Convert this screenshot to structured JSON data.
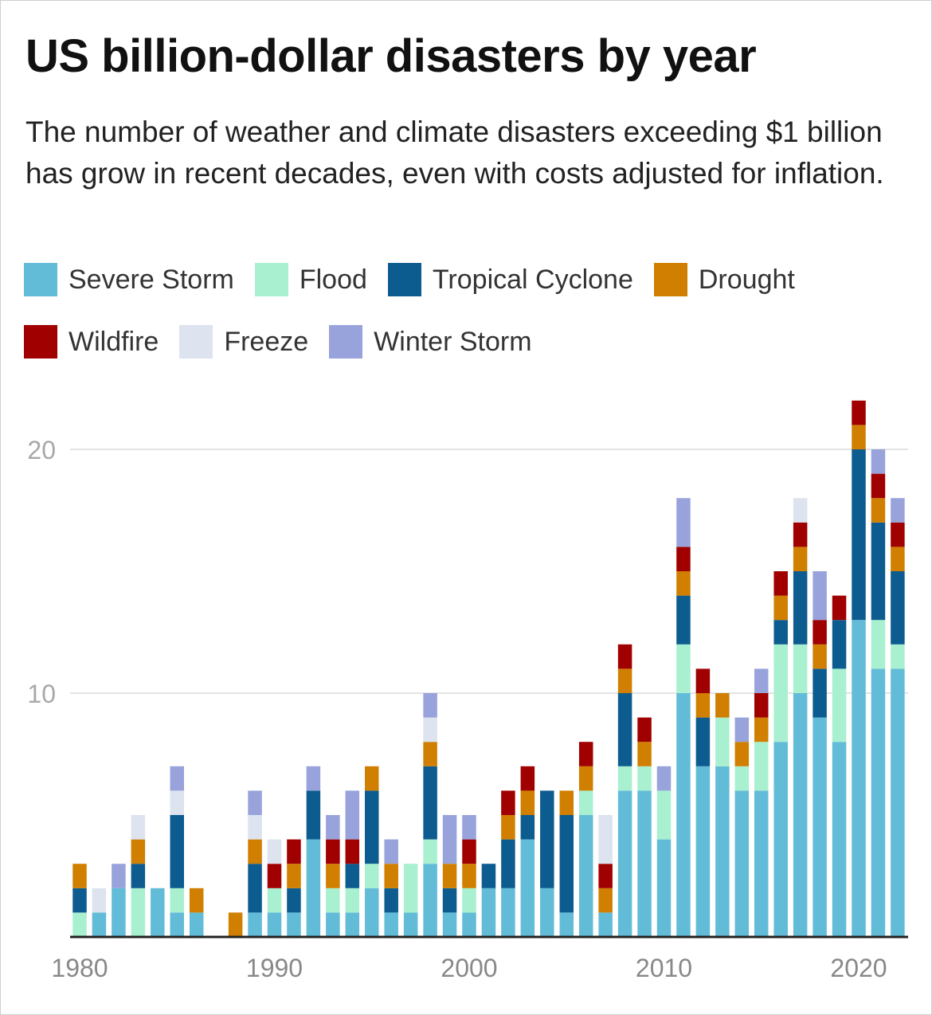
{
  "chart_data": {
    "type": "bar",
    "stacked": true,
    "title": "US billion-dollar disasters by year",
    "subtitle": "The number of weather and climate disasters exceeding $1 billion has grow in recent decades, even with costs adjusted for inflation.",
    "xlabel": "",
    "ylabel": "",
    "ylim": [
      0,
      22
    ],
    "yticks": [
      10,
      20
    ],
    "xticks": [
      1980,
      1990,
      2000,
      2010,
      2020
    ],
    "grid": true,
    "legend_position": "top",
    "categories": [
      1980,
      1981,
      1982,
      1983,
      1984,
      1985,
      1986,
      1987,
      1988,
      1989,
      1990,
      1991,
      1992,
      1993,
      1994,
      1995,
      1996,
      1997,
      1998,
      1999,
      2000,
      2001,
      2002,
      2003,
      2004,
      2005,
      2006,
      2007,
      2008,
      2009,
      2010,
      2011,
      2012,
      2013,
      2014,
      2015,
      2016,
      2017,
      2018,
      2019,
      2020,
      2021,
      2022
    ],
    "series": [
      {
        "name": "Severe Storm",
        "color": "#62bcd8",
        "values": [
          0,
          1,
          2,
          0,
          2,
          1,
          1,
          0,
          0,
          1,
          1,
          1,
          4,
          1,
          1,
          2,
          1,
          1,
          3,
          1,
          1,
          2,
          2,
          4,
          2,
          1,
          5,
          1,
          6,
          6,
          4,
          10,
          7,
          7,
          6,
          6,
          8,
          10,
          9,
          8,
          13,
          11,
          11
        ]
      },
      {
        "name": "Flood",
        "color": "#a8f0d0",
        "values": [
          1,
          0,
          0,
          2,
          0,
          1,
          0,
          0,
          0,
          0,
          1,
          0,
          0,
          1,
          1,
          1,
          0,
          2,
          1,
          0,
          1,
          0,
          0,
          0,
          0,
          0,
          1,
          0,
          1,
          1,
          2,
          2,
          0,
          2,
          1,
          2,
          4,
          2,
          0,
          3,
          0,
          2,
          1
        ]
      },
      {
        "name": "Tropical Cyclone",
        "color": "#0d5c8f",
        "values": [
          1,
          0,
          0,
          1,
          0,
          3,
          0,
          0,
          0,
          2,
          0,
          1,
          2,
          0,
          1,
          3,
          1,
          0,
          3,
          1,
          0,
          1,
          2,
          1,
          4,
          4,
          0,
          0,
          3,
          0,
          0,
          2,
          2,
          0,
          0,
          0,
          1,
          3,
          2,
          2,
          7,
          4,
          3
        ]
      },
      {
        "name": "Drought",
        "color": "#d07f00",
        "values": [
          1,
          0,
          0,
          1,
          0,
          0,
          1,
          0,
          1,
          1,
          0,
          1,
          0,
          1,
          0,
          1,
          1,
          0,
          1,
          1,
          1,
          0,
          1,
          1,
          0,
          1,
          1,
          1,
          1,
          1,
          0,
          1,
          1,
          1,
          1,
          1,
          1,
          1,
          1,
          0,
          1,
          1,
          1
        ]
      },
      {
        "name": "Wildfire",
        "color": "#a00000",
        "values": [
          0,
          0,
          0,
          0,
          0,
          0,
          0,
          0,
          0,
          0,
          1,
          1,
          0,
          1,
          1,
          0,
          0,
          0,
          0,
          0,
          1,
          0,
          1,
          1,
          0,
          0,
          1,
          1,
          1,
          1,
          0,
          1,
          1,
          0,
          0,
          1,
          1,
          1,
          1,
          1,
          1,
          1,
          1
        ]
      },
      {
        "name": "Freeze",
        "color": "#dde3ef",
        "values": [
          0,
          1,
          0,
          1,
          0,
          1,
          0,
          0,
          0,
          1,
          1,
          0,
          0,
          0,
          0,
          0,
          0,
          0,
          1,
          0,
          0,
          0,
          0,
          0,
          0,
          0,
          0,
          2,
          0,
          0,
          0,
          0,
          0,
          0,
          0,
          0,
          0,
          1,
          0,
          0,
          0,
          0,
          0
        ]
      },
      {
        "name": "Winter Storm",
        "color": "#98a3dc",
        "values": [
          0,
          0,
          1,
          0,
          0,
          1,
          0,
          0,
          0,
          1,
          0,
          0,
          1,
          1,
          2,
          0,
          1,
          0,
          1,
          2,
          1,
          0,
          0,
          0,
          0,
          0,
          0,
          0,
          0,
          0,
          1,
          2,
          0,
          0,
          1,
          1,
          0,
          0,
          2,
          0,
          0,
          1,
          1
        ]
      }
    ]
  }
}
